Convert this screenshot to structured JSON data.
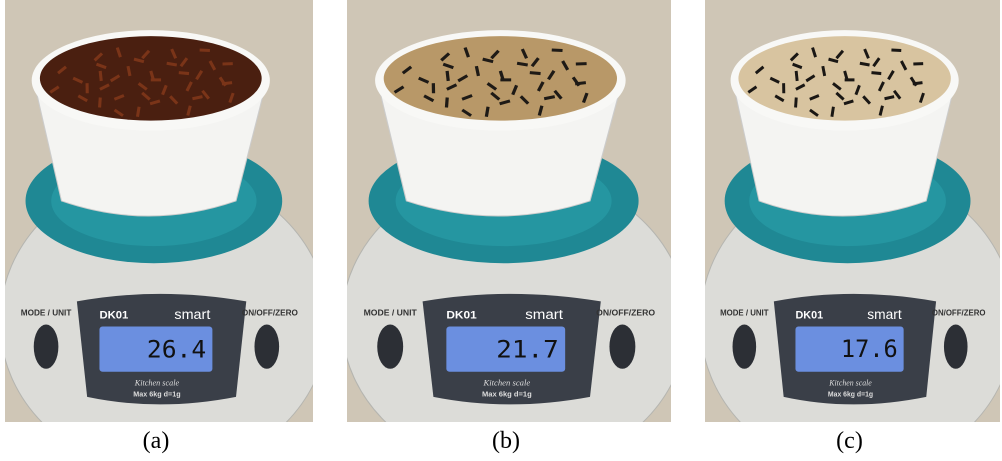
{
  "panels": [
    {
      "caption": "(a)",
      "reading": "26.4",
      "model": "DK01",
      "brand": "smart",
      "left_button": "MODE / UNIT",
      "right_button": "ON/OFF/ZERO",
      "subtitle": "Kitchen scale",
      "capacity": "Max  6kg d=1g"
    },
    {
      "caption": "(b)",
      "reading": "21.7",
      "model": "DK01",
      "brand": "smart",
      "left_button": "MODE / UNIT",
      "right_button": "ON/OFF/ZERO",
      "subtitle": "Kitchen scale",
      "capacity": "Max  6kg d=1g"
    },
    {
      "caption": "(c)",
      "reading": "17.6",
      "model": "DK01",
      "brand": "smart",
      "left_button": "MODE / UNIT",
      "right_button": "ON/OFF/ZERO",
      "subtitle": "Kitchen scale",
      "capacity": "Max  6kg d=1g"
    }
  ]
}
